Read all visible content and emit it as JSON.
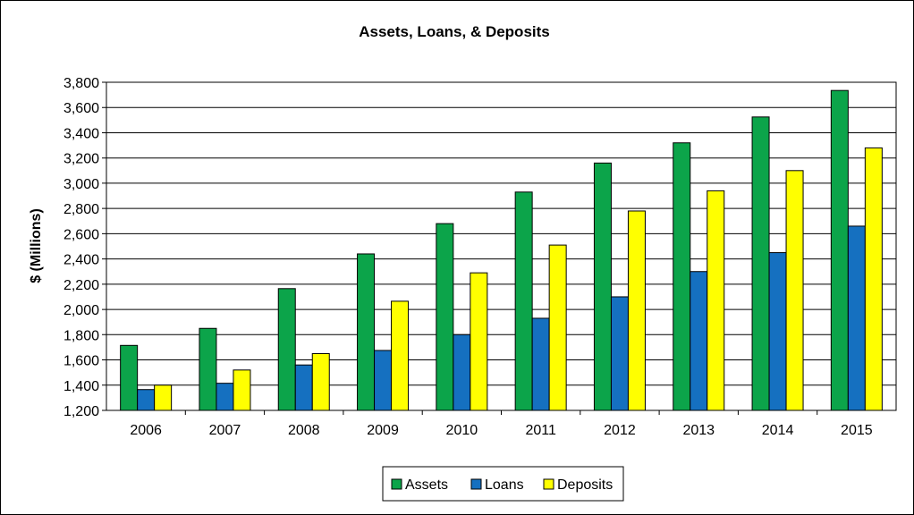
{
  "chart_data": {
    "type": "bar",
    "title": "Assets, Loans, & Deposits",
    "xlabel": "",
    "ylabel": "$ (Millions)",
    "ylim": [
      1200,
      3800
    ],
    "yticks": [
      "1,200",
      "1,400",
      "1,600",
      "1,800",
      "2,000",
      "2,200",
      "2,400",
      "2,600",
      "2,800",
      "3,000",
      "3,200",
      "3,400",
      "3,600",
      "3,800"
    ],
    "categories": [
      "2006",
      "2007",
      "2008",
      "2009",
      "2010",
      "2011",
      "2012",
      "2013",
      "2014",
      "2015"
    ],
    "series": [
      {
        "name": "Assets",
        "color": "#0ca44a",
        "values": [
          1715,
          1850,
          2165,
          2440,
          2680,
          2930,
          3160,
          3320,
          3525,
          3735
        ]
      },
      {
        "name": "Loans",
        "color": "#1570c0",
        "values": [
          1365,
          1415,
          1560,
          1675,
          1800,
          1930,
          2100,
          2300,
          2450,
          2660
        ]
      },
      {
        "name": "Deposits",
        "color": "#ffff00",
        "values": [
          1400,
          1520,
          1650,
          2065,
          2290,
          2510,
          2780,
          2940,
          3100,
          3280
        ]
      }
    ],
    "grid": true,
    "legend": "bottom"
  }
}
